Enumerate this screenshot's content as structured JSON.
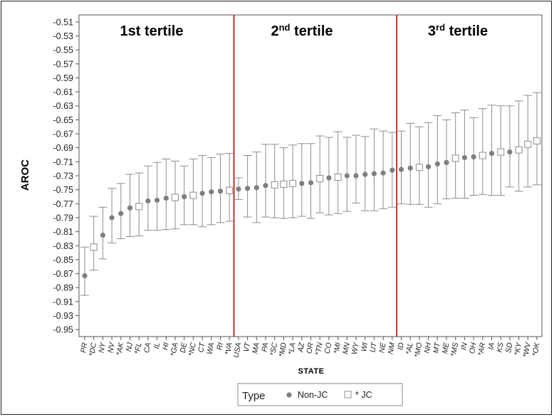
{
  "chart_data": {
    "type": "scatter",
    "xlabel": "STATE",
    "ylabel": "AROC",
    "ylim": [
      -0.96,
      -0.5
    ],
    "yticks": [
      -0.51,
      -0.53,
      -0.55,
      -0.57,
      -0.59,
      -0.61,
      -0.63,
      -0.65,
      -0.67,
      -0.69,
      -0.71,
      -0.73,
      -0.75,
      -0.77,
      -0.79,
      -0.81,
      -0.83,
      -0.85,
      -0.87,
      -0.89,
      -0.91,
      -0.93,
      -0.95
    ],
    "error_bars": true,
    "tertiles": [
      {
        "label_main": "1st tertile",
        "label_sup": "",
        "label_end": ""
      },
      {
        "label_main": "2",
        "label_sup": "nd",
        "label_end": " tertile"
      },
      {
        "label_main": "3",
        "label_sup": "rd",
        "label_end": " tertile"
      }
    ],
    "tertile_dividers_after": [
      "*VA",
      "NM"
    ],
    "divider_color": "#c00000",
    "marker_color": "#7f7f7f",
    "points": [
      {
        "state": "PR",
        "jc": false,
        "y": -0.873,
        "lo": -0.901,
        "hi": -0.832
      },
      {
        "state": "*DC",
        "jc": true,
        "y": -0.832,
        "lo": -0.865,
        "hi": -0.788
      },
      {
        "state": "NY",
        "jc": false,
        "y": -0.815,
        "lo": -0.849,
        "hi": -0.775
      },
      {
        "state": "NV",
        "jc": false,
        "y": -0.79,
        "lo": -0.826,
        "hi": -0.748
      },
      {
        "state": "*AK",
        "jc": false,
        "y": -0.784,
        "lo": -0.82,
        "hi": -0.741
      },
      {
        "state": "NJ",
        "jc": false,
        "y": -0.776,
        "lo": -0.817,
        "hi": -0.728
      },
      {
        "state": "*FL",
        "jc": true,
        "y": -0.774,
        "lo": -0.816,
        "hi": -0.726
      },
      {
        "state": "CA",
        "jc": false,
        "y": -0.766,
        "lo": -0.808,
        "hi": -0.716
      },
      {
        "state": "IL",
        "jc": false,
        "y": -0.765,
        "lo": -0.808,
        "hi": -0.711
      },
      {
        "state": "HI",
        "jc": false,
        "y": -0.762,
        "lo": -0.807,
        "hi": -0.706
      },
      {
        "state": "*GA",
        "jc": true,
        "y": -0.761,
        "lo": -0.806,
        "hi": -0.709
      },
      {
        "state": "DE",
        "jc": false,
        "y": -0.76,
        "lo": -0.8,
        "hi": -0.716
      },
      {
        "state": "*NC",
        "jc": true,
        "y": -0.758,
        "lo": -0.8,
        "hi": -0.706
      },
      {
        "state": "CT",
        "jc": false,
        "y": -0.755,
        "lo": -0.803,
        "hi": -0.701
      },
      {
        "state": "WA",
        "jc": false,
        "y": -0.753,
        "lo": -0.8,
        "hi": -0.704
      },
      {
        "state": "RI",
        "jc": false,
        "y": -0.752,
        "lo": -0.797,
        "hi": -0.699
      },
      {
        "state": "*VA",
        "jc": true,
        "y": -0.751,
        "lo": -0.795,
        "hi": -0.698
      },
      {
        "state": "USA",
        "jc": false,
        "y": -0.749,
        "lo": -0.764,
        "hi": -0.733
      },
      {
        "state": "VT",
        "jc": false,
        "y": -0.748,
        "lo": -0.789,
        "hi": -0.701
      },
      {
        "state": "MA",
        "jc": false,
        "y": -0.747,
        "lo": -0.797,
        "hi": -0.696
      },
      {
        "state": "PA",
        "jc": false,
        "y": -0.744,
        "lo": -0.789,
        "hi": -0.685
      },
      {
        "state": "*SC",
        "jc": true,
        "y": -0.743,
        "lo": -0.79,
        "hi": -0.685
      },
      {
        "state": "*MD",
        "jc": true,
        "y": -0.742,
        "lo": -0.791,
        "hi": -0.69
      },
      {
        "state": "*LA",
        "jc": true,
        "y": -0.741,
        "lo": -0.79,
        "hi": -0.686
      },
      {
        "state": "AZ",
        "jc": false,
        "y": -0.741,
        "lo": -0.788,
        "hi": -0.684
      },
      {
        "state": "OR",
        "jc": false,
        "y": -0.74,
        "lo": -0.791,
        "hi": -0.684
      },
      {
        "state": "*TN",
        "jc": true,
        "y": -0.734,
        "lo": -0.783,
        "hi": -0.673
      },
      {
        "state": "CO",
        "jc": false,
        "y": -0.733,
        "lo": -0.786,
        "hi": -0.675
      },
      {
        "state": "*MI",
        "jc": true,
        "y": -0.732,
        "lo": -0.784,
        "hi": -0.667
      },
      {
        "state": "MN",
        "jc": false,
        "y": -0.73,
        "lo": -0.781,
        "hi": -0.675
      },
      {
        "state": "WY",
        "jc": false,
        "y": -0.73,
        "lo": -0.769,
        "hi": -0.672
      },
      {
        "state": "WI",
        "jc": false,
        "y": -0.728,
        "lo": -0.78,
        "hi": -0.674
      },
      {
        "state": "UT",
        "jc": false,
        "y": -0.727,
        "lo": -0.78,
        "hi": -0.663
      },
      {
        "state": "NE",
        "jc": false,
        "y": -0.726,
        "lo": -0.777,
        "hi": -0.666
      },
      {
        "state": "NM",
        "jc": false,
        "y": -0.722,
        "lo": -0.775,
        "hi": -0.668
      },
      {
        "state": "ID",
        "jc": false,
        "y": -0.721,
        "lo": -0.77,
        "hi": -0.666
      },
      {
        "state": "*AL",
        "jc": false,
        "y": -0.719,
        "lo": -0.771,
        "hi": -0.655
      },
      {
        "state": "*MO",
        "jc": true,
        "y": -0.718,
        "lo": -0.771,
        "hi": -0.66
      },
      {
        "state": "NH",
        "jc": false,
        "y": -0.717,
        "lo": -0.775,
        "hi": -0.654
      },
      {
        "state": "MT",
        "jc": false,
        "y": -0.713,
        "lo": -0.77,
        "hi": -0.644
      },
      {
        "state": "ME",
        "jc": false,
        "y": -0.711,
        "lo": -0.763,
        "hi": -0.65
      },
      {
        "state": "*MS",
        "jc": true,
        "y": -0.705,
        "lo": -0.762,
        "hi": -0.64
      },
      {
        "state": "IN",
        "jc": false,
        "y": -0.704,
        "lo": -0.762,
        "hi": -0.636
      },
      {
        "state": "OH",
        "jc": false,
        "y": -0.703,
        "lo": -0.758,
        "hi": -0.647
      },
      {
        "state": "*AR",
        "jc": true,
        "y": -0.701,
        "lo": -0.757,
        "hi": -0.634
      },
      {
        "state": "IA",
        "jc": false,
        "y": -0.698,
        "lo": -0.758,
        "hi": -0.629
      },
      {
        "state": "KS",
        "jc": true,
        "y": -0.696,
        "lo": -0.758,
        "hi": -0.63
      },
      {
        "state": "SD",
        "jc": false,
        "y": -0.696,
        "lo": -0.746,
        "hi": -0.63
      },
      {
        "state": "*KY",
        "jc": true,
        "y": -0.693,
        "lo": -0.752,
        "hi": -0.623
      },
      {
        "state": "*WV",
        "jc": true,
        "y": -0.685,
        "lo": -0.746,
        "hi": -0.615
      },
      {
        "state": "*OK",
        "jc": true,
        "y": -0.68,
        "lo": -0.743,
        "hi": -0.611
      }
    ],
    "legend": {
      "title": "Type",
      "non_jc_label": "Non-JC",
      "jc_label": "* JC",
      "placement": "bottom-center"
    }
  }
}
